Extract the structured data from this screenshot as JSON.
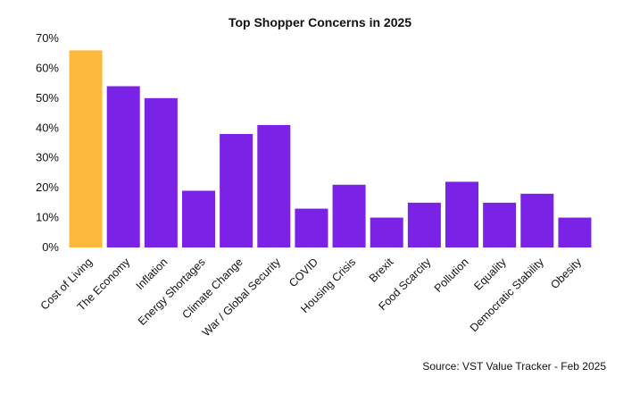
{
  "chart_data": {
    "type": "bar",
    "title": "Top Shopper Concerns in 2025",
    "categories": [
      "Cost of Living",
      "The Economy",
      "Inflation",
      "Energy Shortages",
      "Climate Change",
      "War / Global Security",
      "COVID",
      "Housing Crisis",
      "Brexit",
      "Food Scarcity",
      "Pollution",
      "Equality",
      "Democratic Stability",
      "Obesity"
    ],
    "values": [
      66,
      54,
      50,
      19,
      38,
      41,
      13,
      21,
      10,
      15,
      22,
      15,
      18,
      10
    ],
    "ylim": [
      0,
      70
    ],
    "yticks": [
      "0%",
      "10%",
      "20%",
      "30%",
      "40%",
      "50%",
      "60%",
      "70%"
    ],
    "xlabel": "",
    "ylabel": "",
    "highlight_index": 0,
    "colors": {
      "highlight": "#FDB93B",
      "default": "#7A22E6"
    },
    "source": "Source: VST Value Tracker - Feb 2025"
  }
}
